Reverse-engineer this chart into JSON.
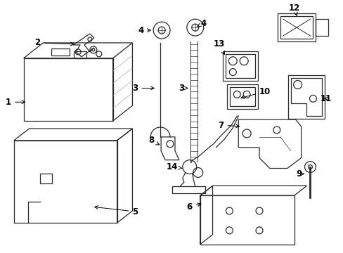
{
  "background_color": "#ffffff",
  "line_color": "#2a2a2a",
  "fig_width": 4.89,
  "fig_height": 3.6,
  "dpi": 100,
  "label_fontsize": 8.5
}
